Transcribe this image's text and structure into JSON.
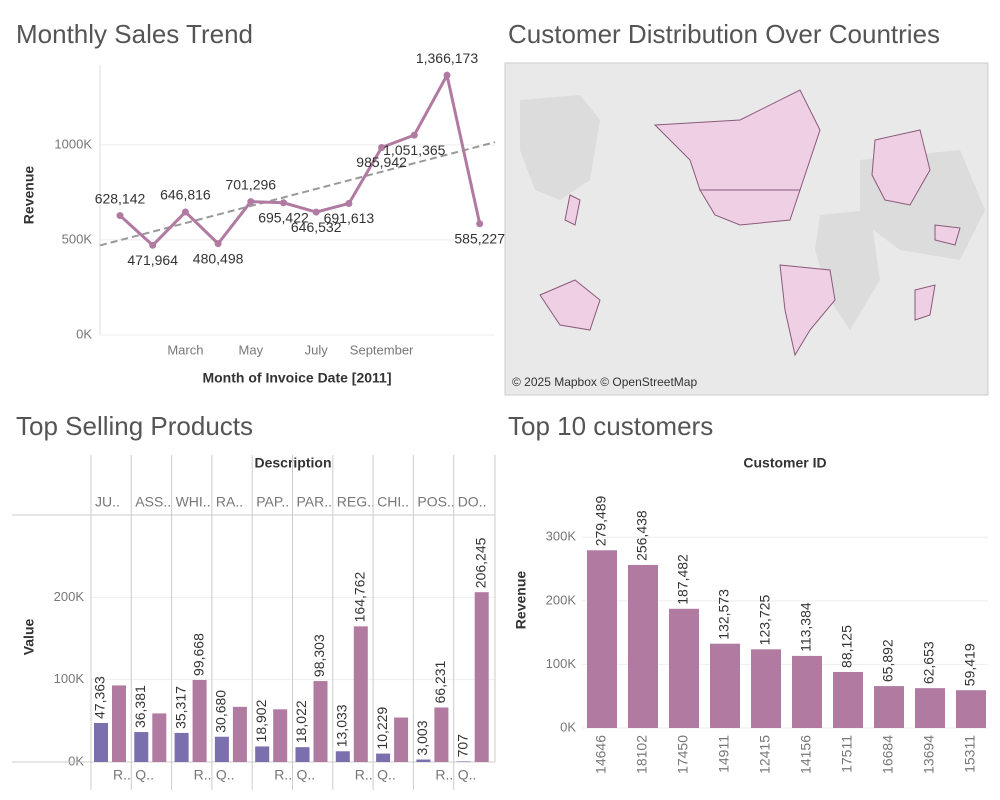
{
  "chart_data": [
    {
      "type": "line",
      "title": "Monthly Sales Trend",
      "x_label": "Month of Invoice Date [2011]",
      "y_label": "Revenue",
      "categories": [
        null,
        null,
        "March",
        null,
        "May",
        null,
        "July",
        null,
        "September",
        null,
        null,
        null
      ],
      "values": [
        628142,
        471964,
        646816,
        480498,
        701296,
        695422,
        646532,
        691613,
        985942,
        1051365,
        1366173,
        585227
      ],
      "value_labels": [
        "628,142",
        "471,964",
        "646,816",
        "480,498",
        "701,296",
        "695,422",
        "646,532",
        "691,613",
        "985,942",
        "1,051,365",
        "1,366,173",
        "585,227"
      ],
      "color": "#b07aa1",
      "trend_line": true,
      "grid": true,
      "ylim": [
        0,
        1420000
      ],
      "yticks": [
        {
          "value": 0,
          "label": "0K"
        },
        {
          "value": 500000,
          "label": "500K"
        },
        {
          "value": 1000000,
          "label": "1000K"
        }
      ]
    },
    {
      "type": "map",
      "title": "Customer Distribution Over Countries",
      "attribution": "© 2025 Mapbox © OpenStreetMap"
    },
    {
      "type": "grouped_bar",
      "title": "Top Selling Products",
      "column_header": "Description",
      "y_label": "Value",
      "categories": [
        "JU..",
        "ASS..",
        "WHI..",
        "RA..",
        "PAP..",
        "PAR..",
        "REG..",
        "CHI..",
        "POS..",
        "DO.."
      ],
      "subcategories": [
        "R..",
        "Q..",
        "R..",
        "Q..",
        "R..",
        "Q..",
        "R..",
        "Q..",
        "R..",
        "Q.."
      ],
      "series": [
        {
          "color": "#7b6fae",
          "values": [
            47363,
            36381,
            35317,
            30680,
            18902,
            18022,
            13033,
            10229,
            3003,
            707
          ],
          "value_labels": [
            "47,363",
            "36,381",
            "35,317",
            "30,680",
            "18,902",
            "18,022",
            "13,033",
            "10,229",
            "3,003",
            "707"
          ]
        },
        {
          "color": "#b07aa1",
          "values": [
            93000,
            59000,
            99668,
            67000,
            64000,
            98303,
            164762,
            54000,
            66231,
            206245
          ],
          "value_labels": [
            null,
            null,
            "99,668",
            null,
            null,
            "98,303",
            "164,762",
            null,
            "66,231",
            "206,245"
          ]
        }
      ],
      "grid": true,
      "ylim": [
        0,
        300000
      ],
      "yticks": [
        {
          "value": 0,
          "label": "0K"
        },
        {
          "value": 100000,
          "label": "100K"
        },
        {
          "value": 200000,
          "label": "200K"
        }
      ]
    },
    {
      "type": "bar",
      "title": "Top 10 customers",
      "column_header": "Customer ID",
      "y_label": "Revenue",
      "categories": [
        "14646",
        "18102",
        "17450",
        "14911",
        "12415",
        "14156",
        "17511",
        "16684",
        "13694",
        "15311"
      ],
      "values": [
        279489,
        256438,
        187482,
        132573,
        123725,
        113384,
        88125,
        65892,
        62653,
        59419
      ],
      "value_labels": [
        "279,489",
        "256,438",
        "187,482",
        "132,573",
        "123,725",
        "113,384",
        "88,125",
        "65,892",
        "62,653",
        "59,419"
      ],
      "color": "#b07aa1",
      "grid": true,
      "ylim": [
        0,
        390000
      ],
      "yticks": [
        {
          "value": 0,
          "label": "0K"
        },
        {
          "value": 100000,
          "label": "100K"
        },
        {
          "value": 200000,
          "label": "200K"
        },
        {
          "value": 300000,
          "label": "300K"
        }
      ]
    }
  ]
}
